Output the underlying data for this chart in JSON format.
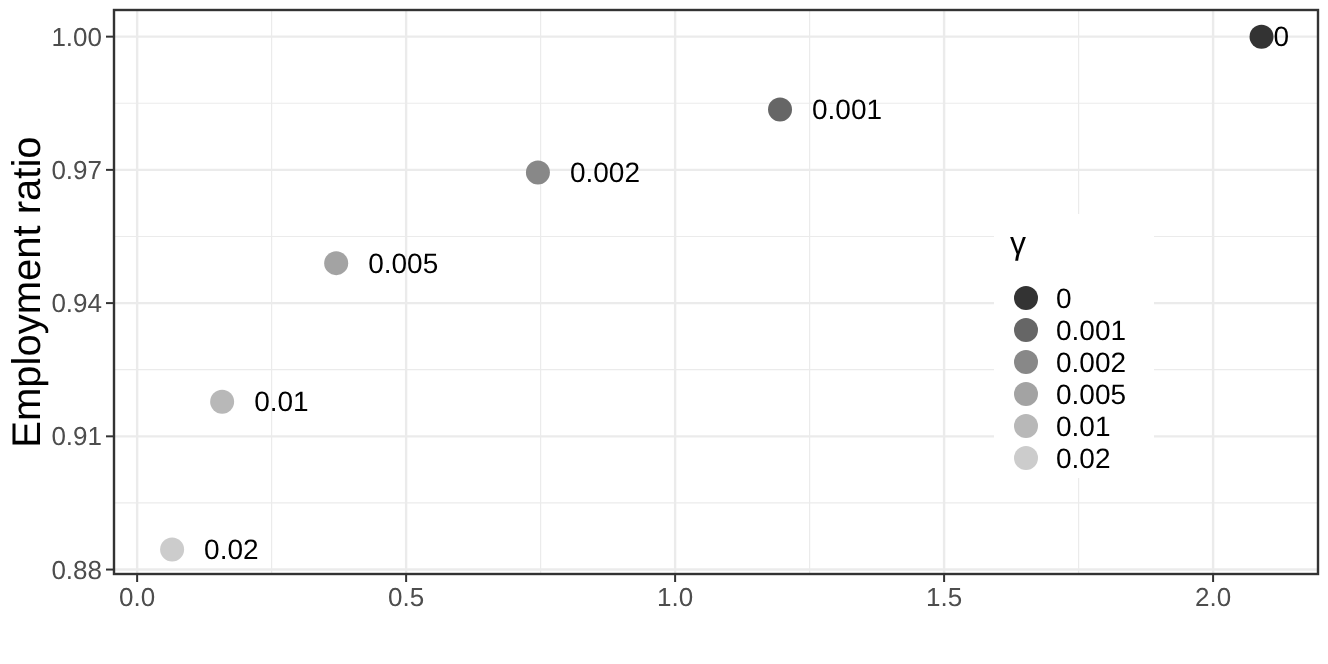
{
  "chart_data": {
    "type": "scatter",
    "ylabel": "Employment ratio",
    "legend_title": "γ",
    "legend": "right",
    "grid": true,
    "marker": "circle",
    "xlim": [
      -0.043,
      2.195
    ],
    "xticks": [
      {
        "value": 0,
        "label": "0.0"
      },
      0.5,
      {
        "value": 1,
        "label": "1.0"
      },
      1.5,
      {
        "value": 2,
        "label": "2.0"
      }
    ],
    "ylim": [
      0.879,
      1.006
    ],
    "yticks": [
      0.88,
      0.91,
      0.94,
      0.97,
      {
        "value": 1,
        "label": "1.00"
      }
    ],
    "series": [
      {
        "name": "0",
        "color": "#333333",
        "x": [
          2.09
        ],
        "values": [
          1.0
        ]
      },
      {
        "name": "0.001",
        "color": "#666666",
        "x": [
          1.195
        ],
        "values": [
          0.9836
        ]
      },
      {
        "name": "0.002",
        "color": "#888888",
        "x": [
          0.745
        ],
        "values": [
          0.9694
        ]
      },
      {
        "name": "0.005",
        "color": "#a3a3a3",
        "x": [
          0.37
        ],
        "values": [
          0.949
        ]
      },
      {
        "name": "0.01",
        "color": "#b8b8b8",
        "x": [
          0.158
        ],
        "values": [
          0.9178
        ]
      },
      {
        "name": "0.02",
        "color": "#cccccc",
        "x": [
          0.065
        ],
        "values": [
          0.8845
        ]
      }
    ]
  }
}
